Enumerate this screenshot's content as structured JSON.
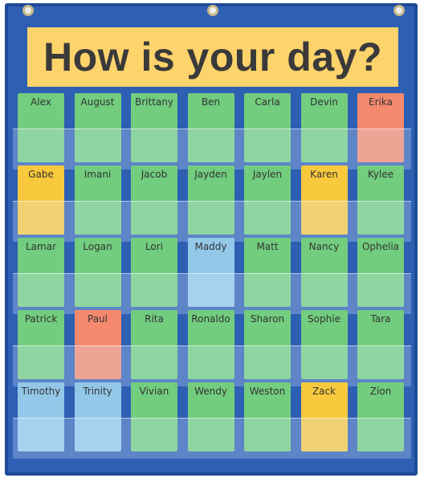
{
  "header": {
    "title": "How is your day?"
  },
  "colors": {
    "green": "#72cd7f",
    "yellow": "#f9c93d",
    "salmon": "#f5896d",
    "blue": "#94c8e8"
  },
  "rows": [
    [
      {
        "name": "Alex",
        "color": "green"
      },
      {
        "name": "August",
        "color": "green"
      },
      {
        "name": "Brittany",
        "color": "green"
      },
      {
        "name": "Ben",
        "color": "green"
      },
      {
        "name": "Carla",
        "color": "green"
      },
      {
        "name": "Devin",
        "color": "green"
      },
      {
        "name": "Erika",
        "color": "salmon"
      }
    ],
    [
      {
        "name": "Gabe",
        "color": "yellow"
      },
      {
        "name": "Imani",
        "color": "green"
      },
      {
        "name": "Jacob",
        "color": "green"
      },
      {
        "name": "Jayden",
        "color": "green"
      },
      {
        "name": "Jaylen",
        "color": "green"
      },
      {
        "name": "Karen",
        "color": "yellow"
      },
      {
        "name": "Kylee",
        "color": "green"
      }
    ],
    [
      {
        "name": "Lamar",
        "color": "green"
      },
      {
        "name": "Logan",
        "color": "green"
      },
      {
        "name": "Lori",
        "color": "green"
      },
      {
        "name": "Maddy",
        "color": "blue"
      },
      {
        "name": "Matt",
        "color": "green"
      },
      {
        "name": "Nancy",
        "color": "green"
      },
      {
        "name": "Ophelia",
        "color": "green"
      }
    ],
    [
      {
        "name": "Patrick",
        "color": "green"
      },
      {
        "name": "Paul",
        "color": "salmon"
      },
      {
        "name": "Rita",
        "color": "green"
      },
      {
        "name": "Ronaldo",
        "color": "green"
      },
      {
        "name": "Sharon",
        "color": "green"
      },
      {
        "name": "Sophie",
        "color": "green"
      },
      {
        "name": "Tara",
        "color": "green"
      }
    ],
    [
      {
        "name": "Timothy",
        "color": "blue"
      },
      {
        "name": "Trinity",
        "color": "blue"
      },
      {
        "name": "Vivian",
        "color": "green"
      },
      {
        "name": "Wendy",
        "color": "green"
      },
      {
        "name": "Weston",
        "color": "green"
      },
      {
        "name": "Zack",
        "color": "yellow"
      },
      {
        "name": "Zion",
        "color": "green"
      }
    ]
  ]
}
